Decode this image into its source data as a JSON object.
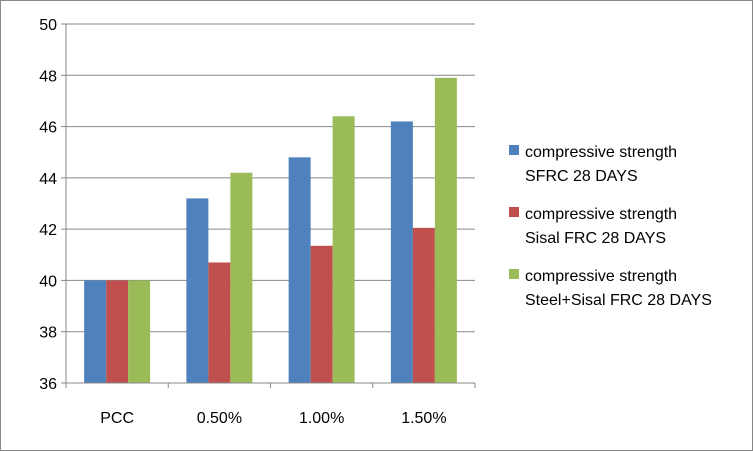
{
  "chart_data": {
    "type": "bar",
    "categories": [
      "PCC",
      "0.50%",
      "1.00%",
      "1.50%"
    ],
    "series": [
      {
        "name": [
          "compressive strength",
          "SFRC 28 DAYS"
        ],
        "color": "#4F81BD",
        "values": [
          40.0,
          43.2,
          44.8,
          46.2
        ]
      },
      {
        "name": [
          "compressive strength",
          "Sisal FRC 28 DAYS"
        ],
        "color": "#C0504D",
        "values": [
          40.0,
          40.7,
          41.35,
          42.05
        ]
      },
      {
        "name": [
          "compressive strength",
          "Steel+Sisal FRC 28 DAYS"
        ],
        "color": "#9BBB59",
        "values": [
          40.0,
          44.2,
          46.4,
          47.9
        ]
      }
    ],
    "ylim": [
      36,
      50
    ],
    "yticks": [
      36,
      38,
      40,
      42,
      44,
      46,
      48,
      50
    ],
    "grid": true,
    "legend_position": "right"
  }
}
